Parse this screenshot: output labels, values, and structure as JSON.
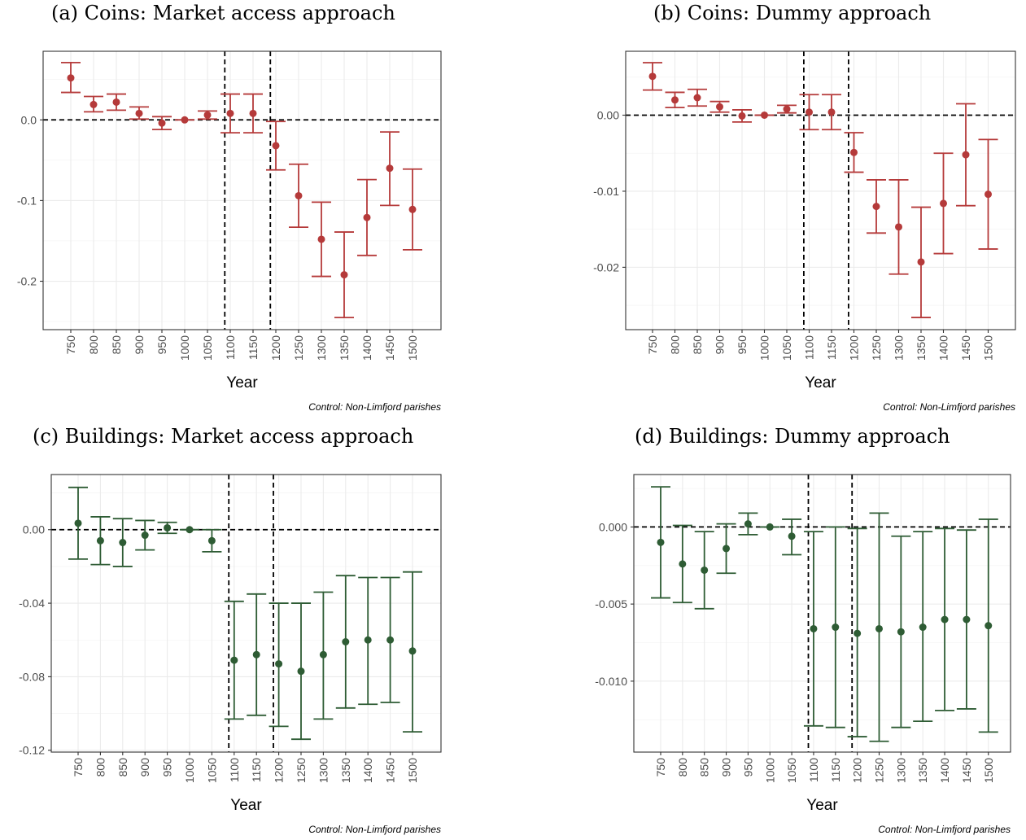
{
  "colors": {
    "coins": "#B53A3A",
    "buildings": "#2E5C34"
  },
  "chart_data": [
    {
      "type": "scatter",
      "title": "(a) Coins: Market access approach",
      "xlabel": "Year",
      "caption": "Control: Non-Limfjord parishes",
      "categories": [
        "750",
        "800",
        "850",
        "900",
        "950",
        "1000",
        "1050",
        "1100",
        "1150",
        "1200",
        "1250",
        "1300",
        "1350",
        "1400",
        "1450",
        "1500"
      ],
      "estimate": [
        0.052,
        0.019,
        0.022,
        0.008,
        -0.004,
        0.0,
        0.006,
        0.008,
        0.008,
        -0.032,
        -0.094,
        -0.148,
        -0.192,
        -0.121,
        -0.06,
        -0.111
      ],
      "ci_low": [
        0.034,
        0.01,
        0.012,
        0.001,
        -0.012,
        0.0,
        0.001,
        -0.016,
        -0.016,
        -0.062,
        -0.133,
        -0.194,
        -0.245,
        -0.168,
        -0.106,
        -0.161
      ],
      "ci_high": [
        0.071,
        0.029,
        0.032,
        0.016,
        0.004,
        0.0,
        0.011,
        0.032,
        0.032,
        -0.002,
        -0.055,
        -0.102,
        -0.139,
        -0.074,
        -0.015,
        -0.061
      ],
      "ylim": [
        -0.26,
        0.085
      ],
      "yticks": [
        0.0,
        -0.1,
        -0.2
      ],
      "ytick_labels": [
        "0.0",
        "-0.1",
        "-0.2"
      ],
      "vlines": [
        "1100",
        "1200"
      ],
      "hline": 0
    },
    {
      "type": "scatter",
      "title": "(b) Coins: Dummy approach",
      "xlabel": "Year",
      "caption": "Control: Non-Limfjord parishes",
      "categories": [
        "750",
        "800",
        "850",
        "900",
        "950",
        "1000",
        "1050",
        "1100",
        "1150",
        "1200",
        "1250",
        "1300",
        "1350",
        "1400",
        "1450",
        "1500"
      ],
      "estimate": [
        0.0051,
        0.002,
        0.0023,
        0.0011,
        -0.0001,
        0.0,
        0.0008,
        0.0004,
        0.0004,
        -0.0049,
        -0.012,
        -0.0147,
        -0.0193,
        -0.0116,
        -0.0052,
        -0.0104
      ],
      "ci_low": [
        0.0033,
        0.001,
        0.0012,
        0.0004,
        -0.0009,
        0.0,
        0.0003,
        -0.0019,
        -0.0019,
        -0.0075,
        -0.0155,
        -0.0209,
        -0.0266,
        -0.0182,
        -0.0119,
        -0.0176
      ],
      "ci_high": [
        0.0069,
        0.003,
        0.0034,
        0.0018,
        0.0007,
        0.0,
        0.0013,
        0.0027,
        0.0027,
        -0.0023,
        -0.0085,
        -0.0085,
        -0.0121,
        -0.005,
        0.0015,
        -0.0032
      ],
      "ylim": [
        -0.0282,
        0.0084
      ],
      "yticks": [
        0.0,
        -0.01,
        -0.02
      ],
      "ytick_labels": [
        "0.00",
        "-0.01",
        "-0.02"
      ],
      "vlines": [
        "1100",
        "1200"
      ],
      "hline": 0
    },
    {
      "type": "scatter",
      "title": "(c) Buildings: Market access approach",
      "xlabel": "Year",
      "caption": "Control: Non-Limfjord parishes",
      "categories": [
        "750",
        "800",
        "850",
        "900",
        "950",
        "1000",
        "1050",
        "1100",
        "1150",
        "1200",
        "1250",
        "1300",
        "1350",
        "1400",
        "1450",
        "1500"
      ],
      "estimate": [
        0.0035,
        -0.006,
        -0.007,
        -0.003,
        0.001,
        0.0,
        -0.006,
        -0.071,
        -0.068,
        -0.073,
        -0.077,
        -0.068,
        -0.061,
        -0.06,
        -0.06,
        -0.066
      ],
      "ci_low": [
        -0.016,
        -0.019,
        -0.02,
        -0.011,
        -0.002,
        0.0,
        -0.012,
        -0.103,
        -0.101,
        -0.107,
        -0.114,
        -0.103,
        -0.097,
        -0.095,
        -0.094,
        -0.11
      ],
      "ci_high": [
        0.023,
        0.007,
        0.006,
        0.005,
        0.004,
        0.0,
        0.0,
        -0.039,
        -0.035,
        -0.04,
        -0.04,
        -0.034,
        -0.025,
        -0.026,
        -0.026,
        -0.023
      ],
      "ylim": [
        -0.121,
        0.03
      ],
      "yticks": [
        0.0,
        -0.04,
        -0.08,
        -0.12
      ],
      "ytick_labels": [
        "0.00",
        "-0.04",
        "-0.08",
        "-0.12"
      ],
      "vlines": [
        "1100",
        "1200"
      ],
      "hline": 0
    },
    {
      "type": "scatter",
      "title": "(d) Buildings: Dummy approach",
      "xlabel": "Year",
      "caption": "Control: Non-Limfjord parishes",
      "categories": [
        "750",
        "800",
        "850",
        "900",
        "950",
        "1000",
        "1050",
        "1100",
        "1150",
        "1200",
        "1250",
        "1300",
        "1350",
        "1400",
        "1450",
        "1500"
      ],
      "estimate": [
        -0.001,
        -0.0024,
        -0.0028,
        -0.0014,
        0.0002,
        0.0,
        -0.0006,
        -0.0066,
        -0.0065,
        -0.0069,
        -0.0066,
        -0.0068,
        -0.0065,
        -0.006,
        -0.006,
        -0.0064
      ],
      "ci_low": [
        -0.0046,
        -0.0049,
        -0.0053,
        -0.003,
        -0.0005,
        0.0,
        -0.0018,
        -0.0129,
        -0.013,
        -0.0136,
        -0.0139,
        -0.013,
        -0.0126,
        -0.0119,
        -0.0118,
        -0.0133
      ],
      "ci_high": [
        0.0026,
        0.0001,
        -0.0003,
        0.0002,
        0.0009,
        0.0,
        0.0005,
        -0.0003,
        0.0,
        -0.0001,
        0.0009,
        -0.0006,
        -0.0003,
        -0.0001,
        -0.0002,
        0.0005
      ],
      "ylim": [
        -0.0146,
        0.0034
      ],
      "yticks": [
        0.0,
        -0.005,
        -0.01
      ],
      "ytick_labels": [
        "0.000",
        "-0.005",
        "-0.010"
      ],
      "vlines": [
        "1100",
        "1200"
      ],
      "hline": 0
    }
  ]
}
